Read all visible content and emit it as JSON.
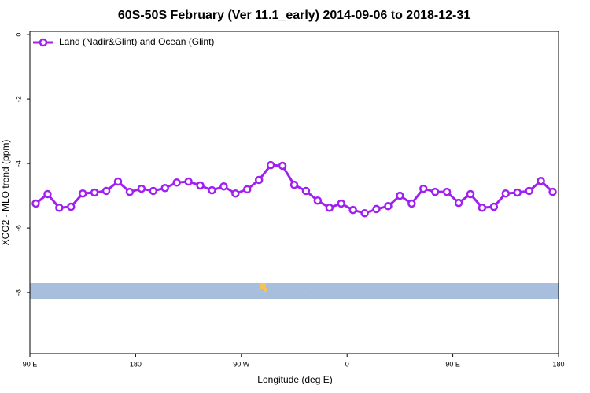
{
  "chart_data": {
    "type": "line",
    "title": "60S-50S February (Ver 11.1_early)   2014-09-06 to 2018-12-31",
    "xlabel": "Longitude (deg E)",
    "ylabel": "XCO2 - MLO trend (ppm)",
    "xlim": [
      90,
      540
    ],
    "ylim": [
      -9.9,
      0.1
    ],
    "xticks": [
      {
        "value": 90,
        "label": "90 E"
      },
      {
        "value": 180,
        "label": "180"
      },
      {
        "value": 270,
        "label": "90 W"
      },
      {
        "value": 360,
        "label": "0"
      },
      {
        "value": 450,
        "label": "90 E"
      },
      {
        "value": 540,
        "label": "180"
      }
    ],
    "yticks": [
      0,
      -2,
      -4,
      -6,
      -8
    ],
    "legend": "upper left",
    "x": [
      95,
      105,
      115,
      125,
      135,
      145,
      155,
      165,
      175,
      185,
      195,
      205,
      215,
      225,
      235,
      245,
      255,
      265,
      275,
      285,
      295,
      305,
      315,
      325,
      335,
      345,
      355,
      365,
      375,
      385,
      395,
      405,
      415,
      425,
      435,
      445,
      455,
      465,
      475,
      485,
      495,
      505,
      515,
      525,
      535
    ],
    "series": [
      {
        "name": "Land (Nadir&Glint) and Ocean (Glint)",
        "color": "#a020f0",
        "values": [
          -5.24,
          -4.95,
          -5.37,
          -5.34,
          -4.93,
          -4.9,
          -4.85,
          -4.56,
          -4.88,
          -4.78,
          -4.85,
          -4.76,
          -4.59,
          -4.56,
          -4.68,
          -4.83,
          -4.71,
          -4.93,
          -4.8,
          -4.51,
          -4.05,
          -4.07,
          -4.66,
          -4.85,
          -5.15,
          -5.37,
          -5.24,
          -5.44,
          -5.54,
          -5.41,
          -5.32,
          -5.0,
          -5.24,
          -4.78,
          -4.88,
          -4.88,
          -5.22,
          -4.95,
          -5.37,
          -5.34,
          -4.93,
          -4.9,
          -4.85,
          -4.54,
          -4.88
        ]
      }
    ]
  }
}
